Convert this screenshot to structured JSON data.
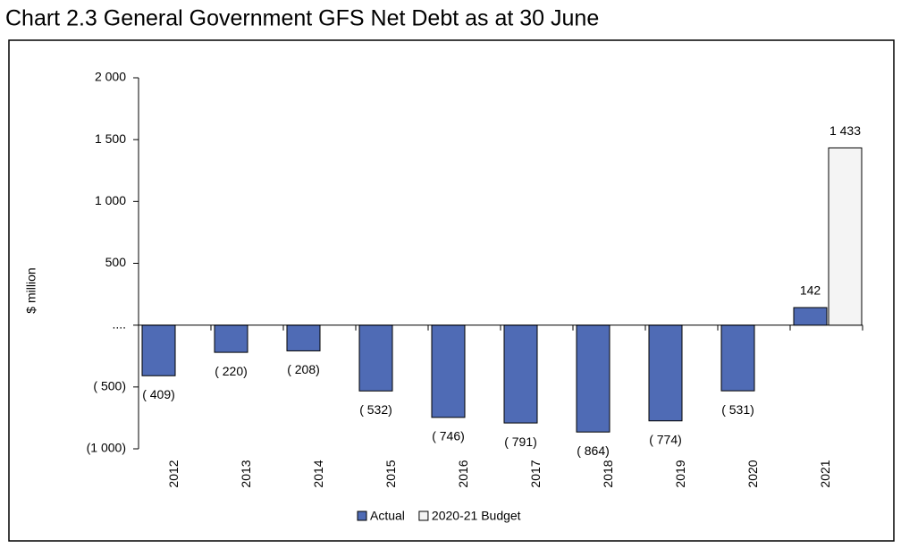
{
  "chart_data": {
    "type": "bar",
    "title": "Chart 2.3   General Government GFS Net Debt as at 30 June",
    "y_label": "$ million",
    "categories": [
      "2012",
      "2013",
      "2014",
      "2015",
      "2016",
      "2017",
      "2018",
      "2019",
      "2020",
      "2021"
    ],
    "series": [
      {
        "name": "Actual",
        "color": "#4f6bb5",
        "values": [
          -409,
          -220,
          -208,
          -532,
          -746,
          -791,
          -864,
          -774,
          -531,
          142
        ],
        "value_labels": [
          "( 409)",
          "( 220)",
          "( 208)",
          "( 532)",
          "( 746)",
          "( 791)",
          "( 864)",
          "( 774)",
          "( 531)",
          "142"
        ]
      },
      {
        "name": "2020-21 Budget",
        "color": "#f4f4f4",
        "values": [
          null,
          null,
          null,
          null,
          null,
          null,
          null,
          null,
          null,
          1433
        ],
        "value_labels": [
          null,
          null,
          null,
          null,
          null,
          null,
          null,
          null,
          null,
          "1 433"
        ]
      }
    ],
    "ylim": [
      -1000,
      2000
    ],
    "yticks": [
      {
        "value": -1000,
        "label": "(1 000)"
      },
      {
        "value": -500,
        "label": "( 500)"
      },
      {
        "value": 0,
        "label": "...."
      },
      500,
      {
        "value": 1000,
        "label": "1 000"
      },
      {
        "value": 1500,
        "label": "1 500"
      },
      {
        "value": 2000,
        "label": "2 000"
      }
    ],
    "legend": "bottom"
  }
}
